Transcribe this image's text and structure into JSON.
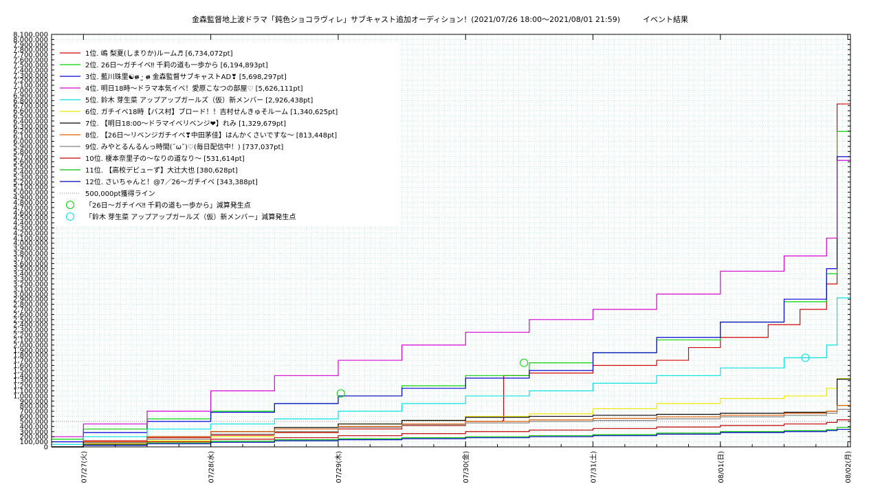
{
  "chart_data": {
    "type": "line",
    "title": "金森監督地上波ドラマ「鈍色ショコラヴィレ」サブキャスト追加オーディション！(2021/07/26 18:00〜2021/08/01 21:59)　　　イベント結果",
    "x_ticks": [
      "07/27(火)",
      "07/28(水)",
      "07/29(木)",
      "07/30(金)",
      "07/31(土)",
      "08/01(日)",
      "08/02(月)"
    ],
    "xlim": [
      "2021-07-26 18:00",
      "2021-08-02 00:30"
    ],
    "ylim": [
      0,
      8100000
    ],
    "y_tick_step": 100000,
    "grid": true,
    "legend_position": "top-left",
    "series": [
      {
        "name": "1位. 嶋 梨夏(しまりか)ルーム♬ [6,734,072pt]",
        "color": "#d00000",
        "points": [
          [
            "2021-07-26 18:00",
            0
          ],
          [
            "2021-07-27 00:00",
            120000
          ],
          [
            "2021-07-27 12:00",
            180000
          ],
          [
            "2021-07-28 00:00",
            230000
          ],
          [
            "2021-07-28 12:00",
            280000
          ],
          [
            "2021-07-29 00:00",
            350000
          ],
          [
            "2021-07-29 12:00",
            420000
          ],
          [
            "2021-07-30 00:00",
            500000
          ],
          [
            "2021-07-30 07:00",
            520000
          ],
          [
            "2021-07-30 07:10",
            1400000
          ],
          [
            "2021-07-30 12:00",
            1450000
          ],
          [
            "2021-07-31 00:00",
            1600000
          ],
          [
            "2021-07-31 12:00",
            1700000
          ],
          [
            "2021-07-31 18:00",
            1950000
          ],
          [
            "2021-08-01 00:00",
            2150000
          ],
          [
            "2021-08-01 09:00",
            2400000
          ],
          [
            "2021-08-01 15:00",
            2700000
          ],
          [
            "2021-08-01 20:00",
            3200000
          ],
          [
            "2021-08-01 21:59",
            6734072
          ],
          [
            "2021-08-02 00:30",
            6734072
          ]
        ]
      },
      {
        "name": "2位. 26日〜ガチイベ‼ 千莉の道も一歩から [6,194,893pt]",
        "color": "#00d000",
        "points": [
          [
            "2021-07-26 18:00",
            150000
          ],
          [
            "2021-07-27 00:00",
            350000
          ],
          [
            "2021-07-27 12:00",
            550000
          ],
          [
            "2021-07-28 00:00",
            700000
          ],
          [
            "2021-07-28 12:00",
            850000
          ],
          [
            "2021-07-29 00:00",
            1000000
          ],
          [
            "2021-07-29 12:00",
            1200000
          ],
          [
            "2021-07-30 00:00",
            1400000
          ],
          [
            "2021-07-30 12:00",
            1650000
          ],
          [
            "2021-07-31 00:00",
            1850000
          ],
          [
            "2021-07-31 12:00",
            2100000
          ],
          [
            "2021-08-01 00:00",
            2450000
          ],
          [
            "2021-08-01 12:00",
            2850000
          ],
          [
            "2021-08-01 20:00",
            3400000
          ],
          [
            "2021-08-01 21:59",
            6194893
          ],
          [
            "2021-08-02 00:30",
            6194893
          ]
        ]
      },
      {
        "name": "3位. 藍川珠里☯ɞ̴̶̷ ·̫ ɞ̴̶̷ 金森監督サブキャストAD❣ [5,698,297pt]",
        "color": "#0000d0",
        "points": [
          [
            "2021-07-26 18:00",
            100000
          ],
          [
            "2021-07-27 00:00",
            280000
          ],
          [
            "2021-07-27 12:00",
            500000
          ],
          [
            "2021-07-28 00:00",
            680000
          ],
          [
            "2021-07-28 12:00",
            850000
          ],
          [
            "2021-07-29 00:00",
            1000000
          ],
          [
            "2021-07-29 12:00",
            1150000
          ],
          [
            "2021-07-30 00:00",
            1350000
          ],
          [
            "2021-07-30 12:00",
            1500000
          ],
          [
            "2021-07-31 00:00",
            1850000
          ],
          [
            "2021-07-31 12:00",
            2150000
          ],
          [
            "2021-08-01 00:00",
            2450000
          ],
          [
            "2021-08-01 12:00",
            2900000
          ],
          [
            "2021-08-01 20:00",
            3500000
          ],
          [
            "2021-08-01 21:59",
            5698297
          ],
          [
            "2021-08-02 00:30",
            5698297
          ]
        ]
      },
      {
        "name": "4位. 明日18時〜ドラマ本気イベ！愛原こなつの部屋♡ [5,626,111pt]",
        "color": "#d000d0",
        "points": [
          [
            "2021-07-26 18:00",
            200000
          ],
          [
            "2021-07-27 00:00",
            450000
          ],
          [
            "2021-07-27 12:00",
            700000
          ],
          [
            "2021-07-28 00:00",
            1100000
          ],
          [
            "2021-07-28 12:00",
            1400000
          ],
          [
            "2021-07-29 00:00",
            1700000
          ],
          [
            "2021-07-29 12:00",
            2000000
          ],
          [
            "2021-07-30 00:00",
            2250000
          ],
          [
            "2021-07-30 12:00",
            2500000
          ],
          [
            "2021-07-31 00:00",
            2700000
          ],
          [
            "2021-07-31 12:00",
            3000000
          ],
          [
            "2021-08-01 00:00",
            3450000
          ],
          [
            "2021-08-01 12:00",
            3750000
          ],
          [
            "2021-08-01 20:00",
            4100000
          ],
          [
            "2021-08-01 21:59",
            5626111
          ],
          [
            "2021-08-02 00:30",
            5626111
          ]
        ]
      },
      {
        "name": "5位. 鈴木 芽生菜 アップアップガールズ（仮）新メンバー [2,926,438pt]",
        "color": "#00e0e0",
        "points": [
          [
            "2021-07-26 18:00",
            50000
          ],
          [
            "2021-07-27 00:00",
            200000
          ],
          [
            "2021-07-27 12:00",
            350000
          ],
          [
            "2021-07-28 00:00",
            450000
          ],
          [
            "2021-07-28 12:00",
            550000
          ],
          [
            "2021-07-29 00:00",
            700000
          ],
          [
            "2021-07-29 12:00",
            850000
          ],
          [
            "2021-07-30 00:00",
            1000000
          ],
          [
            "2021-07-30 12:00",
            1100000
          ],
          [
            "2021-07-31 00:00",
            1250000
          ],
          [
            "2021-07-31 12:00",
            1400000
          ],
          [
            "2021-08-01 00:00",
            1550000
          ],
          [
            "2021-08-01 12:00",
            1750000
          ],
          [
            "2021-08-01 20:00",
            2000000
          ],
          [
            "2021-08-01 21:59",
            2926438
          ],
          [
            "2021-08-02 00:30",
            2926438
          ]
        ]
      },
      {
        "name": "6位. ガチイベ18時【バス村】ブロード！！吉村せんきゅそルーム [1,340,625pt]",
        "color": "#e8e800",
        "points": [
          [
            "2021-07-26 18:00",
            0
          ],
          [
            "2021-07-27 00:00",
            60000
          ],
          [
            "2021-07-27 12:00",
            120000
          ],
          [
            "2021-07-28 00:00",
            200000
          ],
          [
            "2021-07-28 12:00",
            300000
          ],
          [
            "2021-07-29 00:00",
            450000
          ],
          [
            "2021-07-29 12:00",
            520000
          ],
          [
            "2021-07-30 00:00",
            600000
          ],
          [
            "2021-07-30 12:00",
            650000
          ],
          [
            "2021-07-31 00:00",
            750000
          ],
          [
            "2021-07-31 12:00",
            850000
          ],
          [
            "2021-08-01 00:00",
            950000
          ],
          [
            "2021-08-01 12:00",
            1000000
          ],
          [
            "2021-08-01 20:00",
            1150000
          ],
          [
            "2021-08-01 21:59",
            1340625
          ],
          [
            "2021-08-02 00:30",
            1340625
          ]
        ]
      },
      {
        "name": "7位. 【明日18:00〜ドラマイベリベンジ❤】れみ [1,329,679pt]",
        "color": "#000000",
        "points": [
          [
            "2021-07-26 18:00",
            0
          ],
          [
            "2021-07-27 00:00",
            100000
          ],
          [
            "2021-07-27 12:00",
            200000
          ],
          [
            "2021-07-28 00:00",
            300000
          ],
          [
            "2021-07-28 12:00",
            380000
          ],
          [
            "2021-07-29 00:00",
            450000
          ],
          [
            "2021-07-29 12:00",
            520000
          ],
          [
            "2021-07-30 00:00",
            580000
          ],
          [
            "2021-07-30 12:00",
            600000
          ],
          [
            "2021-07-31 00:00",
            620000
          ],
          [
            "2021-07-31 12:00",
            640000
          ],
          [
            "2021-08-01 00:00",
            660000
          ],
          [
            "2021-08-01 12:00",
            680000
          ],
          [
            "2021-08-01 20:00",
            700000
          ],
          [
            "2021-08-01 21:59",
            1329679
          ],
          [
            "2021-08-02 00:30",
            1329679
          ]
        ]
      },
      {
        "name": "8位. 【26日〜リベンジガチイベ❣中田茅佳】はんかくさいですな〜 [813,448pt]",
        "color": "#e06000",
        "points": [
          [
            "2021-07-26 18:00",
            0
          ],
          [
            "2021-07-27 00:00",
            100000
          ],
          [
            "2021-07-27 12:00",
            200000
          ],
          [
            "2021-07-28 00:00",
            300000
          ],
          [
            "2021-07-28 12:00",
            350000
          ],
          [
            "2021-07-29 00:00",
            400000
          ],
          [
            "2021-07-29 12:00",
            450000
          ],
          [
            "2021-07-30 00:00",
            500000
          ],
          [
            "2021-07-30 12:00",
            530000
          ],
          [
            "2021-07-31 00:00",
            560000
          ],
          [
            "2021-07-31 12:00",
            590000
          ],
          [
            "2021-08-01 00:00",
            620000
          ],
          [
            "2021-08-01 12:00",
            660000
          ],
          [
            "2021-08-01 20:00",
            700000
          ],
          [
            "2021-08-01 21:59",
            813448
          ],
          [
            "2021-08-02 00:30",
            813448
          ]
        ]
      },
      {
        "name": "9位. みやとるんるんっ時間(˘ω˘)♡(毎日配信中！) [737,037pt]",
        "color": "#808080",
        "points": [
          [
            "2021-07-26 18:00",
            0
          ],
          [
            "2021-07-27 00:00",
            80000
          ],
          [
            "2021-07-27 12:00",
            150000
          ],
          [
            "2021-07-28 00:00",
            250000
          ],
          [
            "2021-07-28 12:00",
            300000
          ],
          [
            "2021-07-29 00:00",
            380000
          ],
          [
            "2021-07-29 12:00",
            430000
          ],
          [
            "2021-07-30 00:00",
            470000
          ],
          [
            "2021-07-30 12:00",
            500000
          ],
          [
            "2021-07-31 00:00",
            520000
          ],
          [
            "2021-07-31 12:00",
            550000
          ],
          [
            "2021-08-01 00:00",
            590000
          ],
          [
            "2021-08-01 12:00",
            620000
          ],
          [
            "2021-08-01 20:00",
            660000
          ],
          [
            "2021-08-01 21:59",
            737037
          ],
          [
            "2021-08-02 00:30",
            737037
          ]
        ]
      },
      {
        "name": "10位. 榎本奈里子の〜なりの道なり〜 [531,614pt]",
        "color": "#c00000",
        "points": [
          [
            "2021-07-26 18:00",
            0
          ],
          [
            "2021-07-27 00:00",
            50000
          ],
          [
            "2021-07-27 12:00",
            100000
          ],
          [
            "2021-07-28 00:00",
            150000
          ],
          [
            "2021-07-28 12:00",
            180000
          ],
          [
            "2021-07-29 00:00",
            220000
          ],
          [
            "2021-07-29 12:00",
            260000
          ],
          [
            "2021-07-30 00:00",
            300000
          ],
          [
            "2021-07-30 12:00",
            330000
          ],
          [
            "2021-07-31 00:00",
            360000
          ],
          [
            "2021-07-31 12:00",
            390000
          ],
          [
            "2021-08-01 00:00",
            420000
          ],
          [
            "2021-08-01 12:00",
            450000
          ],
          [
            "2021-08-01 20:00",
            480000
          ],
          [
            "2021-08-01 21:59",
            531614
          ],
          [
            "2021-08-02 00:30",
            531614
          ]
        ]
      },
      {
        "name": "11位. 【高校デビューず】大辻大也 [380,628pt]",
        "color": "#00c000",
        "points": [
          [
            "2021-07-26 18:00",
            0
          ],
          [
            "2021-07-27 00:00",
            40000
          ],
          [
            "2021-07-27 12:00",
            80000
          ],
          [
            "2021-07-28 00:00",
            110000
          ],
          [
            "2021-07-28 12:00",
            140000
          ],
          [
            "2021-07-29 00:00",
            160000
          ],
          [
            "2021-07-29 12:00",
            180000
          ],
          [
            "2021-07-30 00:00",
            200000
          ],
          [
            "2021-07-30 12:00",
            220000
          ],
          [
            "2021-07-31 00:00",
            240000
          ],
          [
            "2021-07-31 12:00",
            270000
          ],
          [
            "2021-08-01 00:00",
            300000
          ],
          [
            "2021-08-01 12:00",
            320000
          ],
          [
            "2021-08-01 20:00",
            340000
          ],
          [
            "2021-08-01 21:59",
            380628
          ],
          [
            "2021-08-02 00:30",
            380628
          ]
        ]
      },
      {
        "name": "12位. さいちゃんと！@7／26〜ガチイベ [343,388pt]",
        "color": "#0000c0",
        "points": [
          [
            "2021-07-26 18:00",
            0
          ],
          [
            "2021-07-27 00:00",
            30000
          ],
          [
            "2021-07-27 12:00",
            60000
          ],
          [
            "2021-07-28 00:00",
            90000
          ],
          [
            "2021-07-28 12:00",
            120000
          ],
          [
            "2021-07-29 00:00",
            140000
          ],
          [
            "2021-07-29 12:00",
            160000
          ],
          [
            "2021-07-30 00:00",
            180000
          ],
          [
            "2021-07-30 12:00",
            200000
          ],
          [
            "2021-07-31 00:00",
            220000
          ],
          [
            "2021-07-31 12:00",
            250000
          ],
          [
            "2021-08-01 00:00",
            280000
          ],
          [
            "2021-08-01 12:00",
            300000
          ],
          [
            "2021-08-01 20:00",
            320000
          ],
          [
            "2021-08-01 21:59",
            343388
          ],
          [
            "2021-08-02 00:30",
            343388
          ]
        ]
      }
    ],
    "threshold_line": {
      "label": "500,000pt獲得ライン",
      "value": 500000,
      "color": "#808080"
    },
    "markers": [
      {
        "label": "「26日〜ガチイベ‼ 千莉の道も一歩から」減算発生点",
        "color": "#00d000",
        "points": [
          [
            "2021-07-29 00:30",
            1050000
          ],
          [
            "2021-07-30 11:00",
            1650000
          ]
        ]
      },
      {
        "label": "「鈴木 芽生菜 アップアップガールズ（仮）新メンバー」減算発生点",
        "color": "#00e0e0",
        "points": [
          [
            "2021-08-01 16:00",
            1750000
          ]
        ]
      }
    ]
  }
}
